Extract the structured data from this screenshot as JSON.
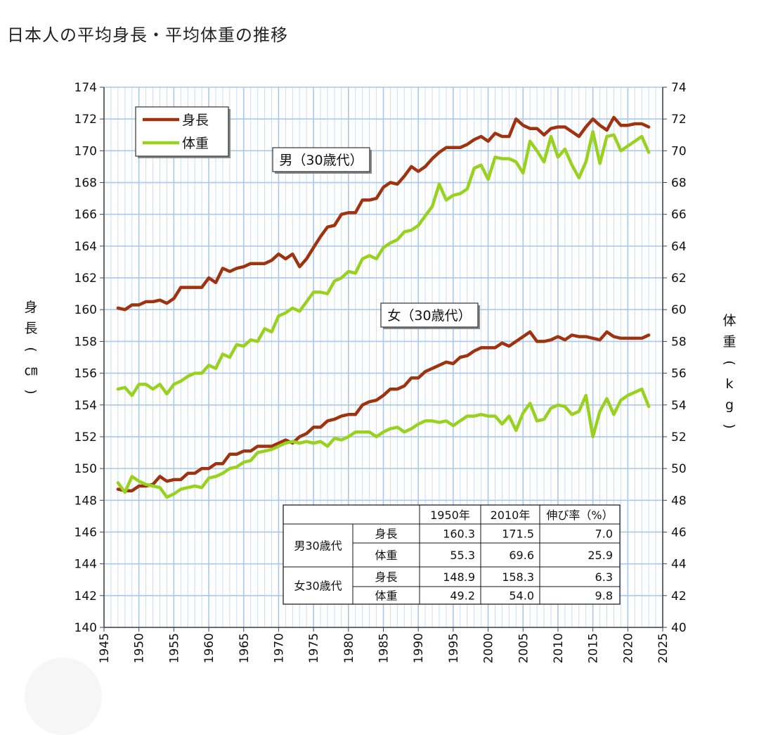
{
  "page": {
    "title": "日本人の平均身長・平均体重の推移"
  },
  "chart_data": {
    "type": "line",
    "title": "日本人の平均身長・平均体重の推移",
    "x_ticks": [
      1945,
      1950,
      1955,
      1960,
      1965,
      1970,
      1975,
      1980,
      1985,
      1990,
      1995,
      2000,
      2005,
      2010,
      2015,
      2020,
      2025
    ],
    "xlim": [
      1945,
      2025
    ],
    "ylim_left": [
      140,
      174
    ],
    "ylim_right": [
      40,
      74
    ],
    "y_left_ticks": [
      140,
      142,
      144,
      146,
      148,
      150,
      152,
      154,
      156,
      158,
      160,
      162,
      164,
      166,
      168,
      170,
      172,
      174
    ],
    "y_right_ticks": [
      40,
      42,
      44,
      46,
      48,
      50,
      52,
      54,
      56,
      58,
      60,
      62,
      64,
      66,
      68,
      70,
      72,
      74
    ],
    "ylabel_left": "身長（㎝）",
    "ylabel_right": "体重（kg）",
    "grid": true,
    "legend": {
      "position": "top-left",
      "entries": [
        {
          "name": "身長",
          "color": "#a0330f"
        },
        {
          "name": "体重",
          "color": "#99d21e"
        }
      ]
    },
    "annotations": [
      {
        "text": "男（30歳代）",
        "near_series": "male_height"
      },
      {
        "text": "女（30歳代）",
        "near_series": "female_height"
      }
    ],
    "x": [
      1947,
      1948,
      1949,
      1950,
      1951,
      1952,
      1953,
      1954,
      1955,
      1956,
      1957,
      1958,
      1959,
      1960,
      1961,
      1962,
      1963,
      1964,
      1965,
      1966,
      1967,
      1968,
      1969,
      1970,
      1971,
      1972,
      1973,
      1974,
      1975,
      1976,
      1977,
      1978,
      1979,
      1980,
      1981,
      1982,
      1983,
      1984,
      1985,
      1986,
      1987,
      1988,
      1989,
      1990,
      1991,
      1992,
      1993,
      1994,
      1995,
      1996,
      1997,
      1998,
      1999,
      2000,
      2001,
      2002,
      2003,
      2004,
      2005,
      2006,
      2007,
      2008,
      2009,
      2010,
      2011,
      2012,
      2013,
      2014,
      2015,
      2016,
      2017,
      2018,
      2019,
      2020,
      2021,
      2022,
      2023
    ],
    "series": [
      {
        "name": "身長",
        "group": "男（30歳代）",
        "axis": "left",
        "color": "#a0330f",
        "values": [
          160.1,
          160.0,
          160.3,
          160.3,
          160.5,
          160.5,
          160.6,
          160.4,
          160.7,
          161.4,
          161.4,
          161.4,
          161.4,
          162.0,
          161.7,
          162.6,
          162.4,
          162.6,
          162.7,
          162.9,
          162.9,
          162.9,
          163.1,
          163.5,
          163.2,
          163.5,
          162.7,
          163.2,
          163.9,
          164.6,
          165.2,
          165.3,
          166.0,
          166.1,
          166.1,
          166.9,
          166.9,
          167.0,
          167.7,
          168.0,
          167.9,
          168.4,
          169.0,
          168.7,
          169.0,
          169.5,
          169.9,
          170.2,
          170.2,
          170.2,
          170.4,
          170.7,
          170.9,
          170.6,
          171.1,
          170.9,
          170.9,
          172.0,
          171.6,
          171.4,
          171.4,
          171.0,
          171.4,
          171.5,
          171.5,
          171.2,
          170.9,
          171.5,
          172.0,
          171.6,
          171.3,
          172.1,
          171.6,
          171.6,
          171.7,
          171.7,
          171.5
        ]
      },
      {
        "name": "体重",
        "group": "男（30歳代）",
        "axis": "right",
        "color": "#99d21e",
        "values": [
          55.0,
          55.1,
          54.6,
          55.3,
          55.3,
          55.0,
          55.3,
          54.7,
          55.3,
          55.5,
          55.8,
          56.0,
          56.0,
          56.5,
          56.3,
          57.2,
          57.0,
          57.8,
          57.7,
          58.1,
          58.0,
          58.8,
          58.6,
          59.6,
          59.8,
          60.1,
          59.9,
          60.5,
          61.1,
          61.1,
          61.0,
          61.8,
          62.0,
          62.4,
          62.3,
          63.2,
          63.4,
          63.2,
          63.9,
          64.2,
          64.4,
          64.9,
          65.0,
          65.3,
          65.9,
          66.5,
          67.9,
          66.9,
          67.2,
          67.3,
          67.6,
          68.9,
          69.1,
          68.2,
          69.6,
          69.5,
          69.5,
          69.3,
          68.6,
          70.6,
          70.0,
          69.3,
          70.9,
          69.6,
          70.1,
          69.1,
          68.3,
          69.3,
          71.2,
          69.2,
          70.9,
          71.0,
          70.0,
          70.3,
          70.6,
          70.9,
          69.9
        ]
      },
      {
        "name": "身長",
        "group": "女（30歳代）",
        "axis": "left",
        "color": "#a0330f",
        "values": [
          148.7,
          148.6,
          148.6,
          148.9,
          148.9,
          149.0,
          149.5,
          149.2,
          149.3,
          149.3,
          149.7,
          149.7,
          150.0,
          150.0,
          150.3,
          150.3,
          150.9,
          150.9,
          151.1,
          151.1,
          151.4,
          151.4,
          151.4,
          151.6,
          151.8,
          151.6,
          152.0,
          152.2,
          152.6,
          152.6,
          153.0,
          153.1,
          153.3,
          153.4,
          153.4,
          154.0,
          154.2,
          154.3,
          154.6,
          155.0,
          155.0,
          155.2,
          155.7,
          155.7,
          156.1,
          156.3,
          156.5,
          156.7,
          156.6,
          157.0,
          157.1,
          157.4,
          157.6,
          157.6,
          157.6,
          157.9,
          157.7,
          158.0,
          158.3,
          158.6,
          158.0,
          158.0,
          158.1,
          158.3,
          158.1,
          158.4,
          158.3,
          158.3,
          158.2,
          158.1,
          158.6,
          158.3,
          158.2,
          158.2,
          158.2,
          158.2,
          158.4
        ]
      },
      {
        "name": "体重",
        "group": "女（30歳代）",
        "axis": "right",
        "color": "#99d21e",
        "values": [
          49.1,
          48.5,
          49.5,
          49.2,
          49.0,
          48.9,
          48.8,
          48.2,
          48.4,
          48.7,
          48.8,
          48.9,
          48.8,
          49.4,
          49.5,
          49.7,
          50.0,
          50.1,
          50.4,
          50.5,
          51.0,
          51.1,
          51.2,
          51.4,
          51.6,
          51.7,
          51.6,
          51.7,
          51.6,
          51.7,
          51.4,
          51.9,
          51.8,
          52.0,
          52.3,
          52.3,
          52.3,
          52.0,
          52.3,
          52.5,
          52.6,
          52.3,
          52.5,
          52.8,
          53.0,
          53.0,
          52.9,
          53.0,
          52.7,
          53.0,
          53.3,
          53.3,
          53.4,
          53.3,
          53.3,
          52.8,
          53.3,
          52.4,
          53.5,
          54.1,
          53.0,
          53.1,
          53.8,
          54.0,
          53.9,
          53.4,
          53.6,
          54.6,
          52.0,
          53.6,
          54.4,
          53.4,
          54.3,
          54.6,
          54.8,
          55.0,
          53.9
        ]
      }
    ],
    "summary_table": {
      "headers": [
        "",
        "",
        "1950年",
        "2010年",
        "伸び率（%）"
      ],
      "rows": [
        {
          "group": "男30歳代",
          "item": "身長",
          "v1950": "160.3",
          "v2010": "171.5",
          "rate": "7.0"
        },
        {
          "group": "男30歳代",
          "item": "体重",
          "v1950": "55.3",
          "v2010": "69.6",
          "rate": "25.9"
        },
        {
          "group": "女30歳代",
          "item": "身長",
          "v1950": "148.9",
          "v2010": "158.3",
          "rate": "6.3"
        },
        {
          "group": "女30歳代",
          "item": "体重",
          "v1950": "49.2",
          "v2010": "54.0",
          "rate": "9.8"
        }
      ]
    }
  }
}
